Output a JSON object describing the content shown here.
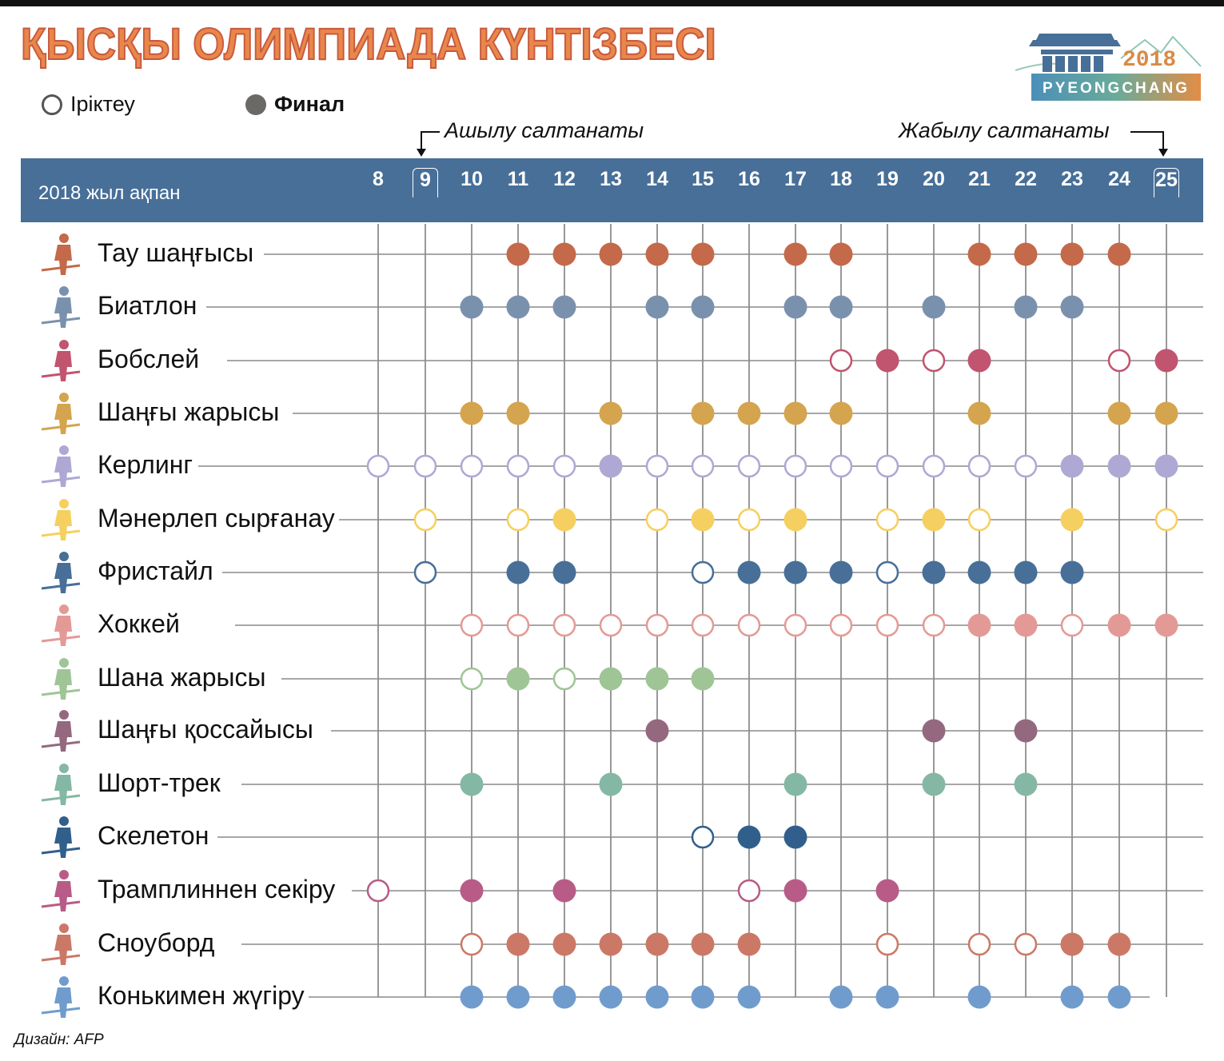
{
  "title": "ҚЫСҚЫ ОЛИМПИАДА КҮНТІЗБЕСІ",
  "legend": {
    "qualifying_label": "Іріктеу",
    "final_label": "Финал"
  },
  "ceremonies": {
    "opening_label": "Ашылу салтанаты",
    "opening_day": 9,
    "closing_label": "Жабылу салтанаты",
    "closing_day": 25
  },
  "header": {
    "month_label": "2018 жыл ақпан",
    "days": [
      "8",
      "9",
      "10",
      "11",
      "12",
      "13",
      "14",
      "15",
      "16",
      "17",
      "18",
      "19",
      "20",
      "21",
      "22",
      "23",
      "24",
      "25"
    ]
  },
  "logo": {
    "year": "2018",
    "city": "PYEONGCHANG"
  },
  "credit": "Дизайн: AFP",
  "chart_data": {
    "type": "table",
    "title": "ҚЫСҚЫ ОЛИМПИАДА КҮНТІЗБЕСІ",
    "xlabel": "2018 жыл ақпан",
    "categories": [
      8,
      9,
      10,
      11,
      12,
      13,
      14,
      15,
      16,
      17,
      18,
      19,
      20,
      21,
      22,
      23,
      24,
      25
    ],
    "legend": [
      {
        "name": "Іріктеу",
        "marker": "open-circle"
      },
      {
        "name": "Финал",
        "marker": "filled-circle"
      }
    ],
    "annotations": [
      {
        "text": "Ашылу салтанаты",
        "day": 9
      },
      {
        "text": "Жабылу салтанаты",
        "day": 25
      }
    ],
    "series": [
      {
        "name": "Тау шаңғысы",
        "color": "#c4694a",
        "events": {
          "11": "F",
          "12": "F",
          "13": "F",
          "14": "F",
          "15": "F",
          "17": "F",
          "18": "F",
          "21": "F",
          "22": "F",
          "23": "F",
          "24": "F"
        }
      },
      {
        "name": "Биатлон",
        "color": "#7a91ae",
        "events": {
          "10": "F",
          "11": "F",
          "12": "F",
          "14": "F",
          "15": "F",
          "17": "F",
          "18": "F",
          "20": "F",
          "22": "F",
          "23": "F"
        }
      },
      {
        "name": "Бобслей",
        "color": "#c1546f",
        "events": {
          "18": "Q",
          "19": "F",
          "20": "Q",
          "21": "F",
          "24": "Q",
          "25": "F"
        }
      },
      {
        "name": "Шаңғы жарысы",
        "color": "#d4a44e",
        "events": {
          "10": "F",
          "11": "F",
          "13": "F",
          "15": "F",
          "16": "F",
          "17": "F",
          "18": "F",
          "21": "F",
          "24": "F",
          "25": "F"
        }
      },
      {
        "name": "Керлинг",
        "color": "#aea8d4",
        "events": {
          "8": "Q",
          "9": "Q",
          "10": "Q",
          "11": "Q",
          "12": "Q",
          "13": "F",
          "14": "Q",
          "15": "Q",
          "16": "Q",
          "17": "Q",
          "18": "Q",
          "19": "Q",
          "20": "Q",
          "21": "Q",
          "22": "Q",
          "23": "F",
          "24": "F",
          "25": "F"
        }
      },
      {
        "name": "Мәнерлеп сырғанау",
        "color": "#f5d060",
        "events": {
          "9": "Q",
          "11": "Q",
          "12": "F",
          "14": "Q",
          "15": "F",
          "16": "Q",
          "17": "F",
          "19": "Q",
          "20": "F",
          "21": "Q",
          "23": "F",
          "25": "Q"
        }
      },
      {
        "name": "Фристайл",
        "color": "#476f98",
        "events": {
          "9": "Q",
          "11": "F",
          "12": "F",
          "15": "Q",
          "16": "F",
          "17": "F",
          "18": "F",
          "19": "Q",
          "20": "F",
          "21": "F",
          "22": "F",
          "23": "F"
        }
      },
      {
        "name": "Хоккей",
        "color": "#e39a96",
        "events": {
          "10": "Q",
          "11": "Q",
          "12": "Q",
          "13": "Q",
          "14": "Q",
          "15": "Q",
          "16": "Q",
          "17": "Q",
          "18": "Q",
          "19": "Q",
          "20": "Q",
          "21": "F",
          "22": "F",
          "23": "Q",
          "24": "F",
          "25": "F"
        }
      },
      {
        "name": "Шана жарысы",
        "color": "#9fc596",
        "events": {
          "10": "Q",
          "11": "F",
          "12": "Q",
          "13": "F",
          "14": "F",
          "15": "F"
        }
      },
      {
        "name": "Шаңғы қоссайысы",
        "color": "#94697f",
        "events": {
          "14": "F",
          "20": "F",
          "22": "F"
        }
      },
      {
        "name": "Шорт-трек",
        "color": "#84b8a4",
        "events": {
          "10": "F",
          "13": "F",
          "17": "F",
          "20": "F",
          "22": "F"
        }
      },
      {
        "name": "Скелетон",
        "color": "#315f8c",
        "events": {
          "15": "Q",
          "16": "F",
          "17": "F"
        }
      },
      {
        "name": "Трамплиннен секіру",
        "color": "#b85c87",
        "events": {
          "8": "Q",
          "10": "F",
          "12": "F",
          "16": "Q",
          "17": "F",
          "19": "F"
        }
      },
      {
        "name": "Сноуборд",
        "color": "#cc7866",
        "events": {
          "10": "Q",
          "11": "F",
          "12": "F",
          "13": "F",
          "14": "F",
          "15": "F",
          "16": "F",
          "19": "Q",
          "21": "Q",
          "22": "Q",
          "23": "F",
          "24": "F"
        }
      },
      {
        "name": "Конькимен жүгіру",
        "color": "#709ccd",
        "events": {
          "10": "F",
          "11": "F",
          "12": "F",
          "13": "F",
          "14": "F",
          "15": "F",
          "16": "F",
          "18": "F",
          "19": "F",
          "21": "F",
          "23": "F",
          "24": "F"
        }
      }
    ]
  }
}
